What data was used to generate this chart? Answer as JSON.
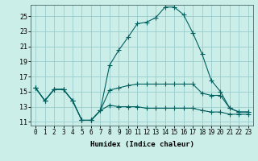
{
  "xlabel": "Humidex (Indice chaleur)",
  "bg_color": "#cceee8",
  "line_color": "#006060",
  "grid_color": "#99cccc",
  "xlim": [
    -0.5,
    23.5
  ],
  "ylim": [
    10.5,
    26.5
  ],
  "xticks": [
    0,
    1,
    2,
    3,
    4,
    5,
    6,
    7,
    8,
    9,
    10,
    11,
    12,
    13,
    14,
    15,
    16,
    17,
    18,
    19,
    20,
    21,
    22,
    23
  ],
  "yticks": [
    11,
    13,
    15,
    17,
    19,
    21,
    23,
    25
  ],
  "line1_x": [
    0,
    1,
    2,
    3,
    4,
    5,
    6,
    7,
    8,
    9,
    10,
    11,
    12,
    13,
    14,
    15,
    16,
    17,
    18,
    19,
    20,
    21,
    22,
    23
  ],
  "line1_y": [
    15.5,
    13.8,
    15.3,
    15.3,
    13.8,
    11.2,
    11.2,
    12.5,
    18.5,
    20.5,
    22.2,
    24.0,
    24.2,
    24.8,
    26.2,
    26.2,
    25.2,
    22.8,
    20.0,
    16.5,
    15.0,
    12.8,
    12.3,
    12.3
  ],
  "line2_x": [
    0,
    1,
    2,
    3,
    4,
    5,
    6,
    7,
    8,
    9,
    10,
    11,
    12,
    13,
    14,
    15,
    16,
    17,
    18,
    19,
    20,
    21,
    22,
    23
  ],
  "line2_y": [
    15.5,
    13.8,
    15.3,
    15.3,
    13.8,
    11.2,
    11.2,
    12.5,
    15.2,
    15.5,
    15.8,
    16.0,
    16.0,
    16.0,
    16.0,
    16.0,
    16.0,
    16.0,
    14.8,
    14.5,
    14.5,
    12.8,
    12.3,
    12.3
  ],
  "line3_x": [
    0,
    1,
    2,
    3,
    4,
    5,
    6,
    7,
    8,
    9,
    10,
    11,
    12,
    13,
    14,
    15,
    16,
    17,
    18,
    19,
    20,
    21,
    22,
    23
  ],
  "line3_y": [
    15.5,
    13.8,
    15.3,
    15.3,
    13.8,
    11.2,
    11.2,
    12.5,
    13.2,
    13.0,
    13.0,
    13.0,
    12.8,
    12.8,
    12.8,
    12.8,
    12.8,
    12.8,
    12.5,
    12.3,
    12.3,
    12.0,
    12.0,
    12.0
  ]
}
